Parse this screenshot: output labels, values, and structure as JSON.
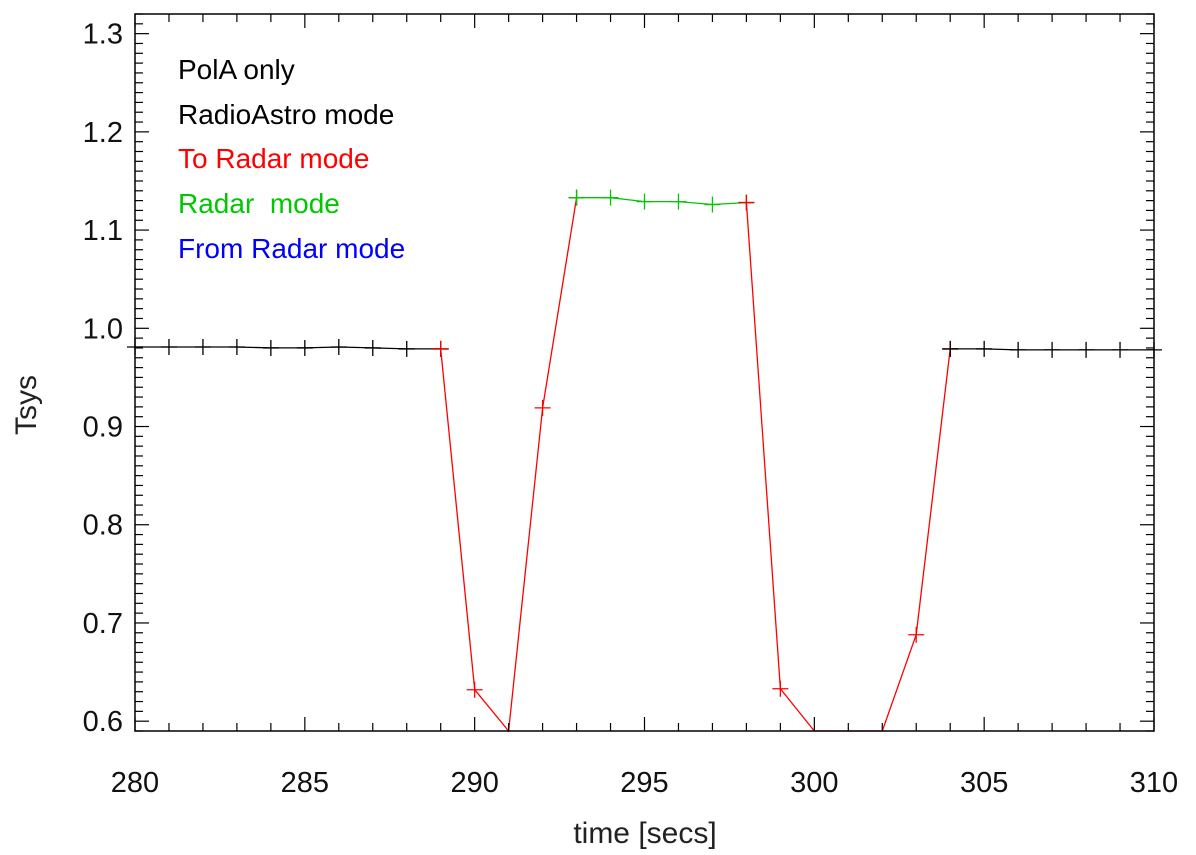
{
  "chart_data": {
    "type": "line",
    "title": "",
    "xlabel": "time [secs]",
    "ylabel": "Tsys",
    "xlim": [
      280,
      310
    ],
    "ylim": [
      0.59,
      1.32
    ],
    "x_ticks": [
      280,
      285,
      290,
      295,
      300,
      305,
      310
    ],
    "x_tick_labels": [
      "280",
      "285",
      "290",
      "295",
      "300",
      "305",
      "310"
    ],
    "y_ticks": [
      0.6,
      0.7,
      0.8,
      0.9,
      1.0,
      1.1,
      1.2,
      1.3
    ],
    "y_tick_labels": [
      "0.6",
      "0.7",
      "0.8",
      "0.9",
      "1.0",
      "1.1",
      "1.2",
      "1.3"
    ],
    "grid": false,
    "annotations": [
      {
        "text": "PolA only",
        "color": "#000000"
      },
      {
        "text": "RadioAstro mode",
        "color": "#000000"
      },
      {
        "text": "To Radar mode",
        "color": "#ff0000"
      },
      {
        "text": "Radar  mode",
        "color": "#00c800"
      },
      {
        "text": "From Radar mode",
        "color": "#0000ff"
      }
    ],
    "series": [
      {
        "color": "#000000",
        "marker": "plus",
        "x": [
          280,
          281,
          282,
          283,
          284,
          285,
          286,
          287,
          288,
          289
        ],
        "y": [
          0.981,
          0.981,
          0.981,
          0.981,
          0.98,
          0.98,
          0.981,
          0.98,
          0.979,
          0.979
        ]
      },
      {
        "color": "#ff0000",
        "marker": "plus",
        "x": [
          289,
          290,
          291,
          292,
          293
        ],
        "y": [
          0.979,
          0.632,
          0.59,
          0.919,
          1.133
        ]
      },
      {
        "color": "#00c800",
        "marker": "plus",
        "x": [
          293,
          294,
          295,
          296,
          297,
          298
        ],
        "y": [
          1.133,
          1.133,
          1.129,
          1.129,
          1.126,
          1.128
        ]
      },
      {
        "color": "#ff0000",
        "marker": "plus",
        "x": [
          298,
          299,
          300,
          301,
          302,
          303,
          304
        ],
        "y": [
          1.128,
          0.633,
          0.59,
          0.59,
          0.59,
          0.688,
          0.979
        ]
      },
      {
        "color": "#000000",
        "marker": "plus",
        "x": [
          304,
          305,
          306,
          307,
          308,
          309,
          310
        ],
        "y": [
          0.979,
          0.979,
          0.978,
          0.978,
          0.978,
          0.978,
          0.978
        ]
      }
    ]
  }
}
